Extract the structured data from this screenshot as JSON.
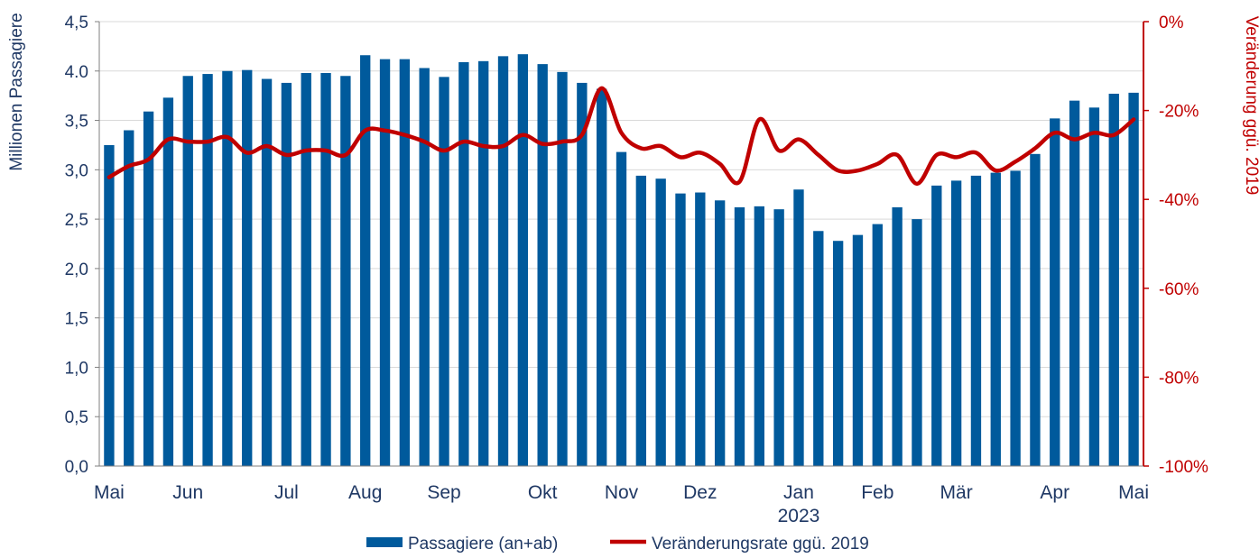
{
  "chart_data": {
    "type": "bar+line",
    "title": "",
    "ylabel_left": "Millionen Passagiere",
    "ylabel_right": "Veränderung ggü. 2019",
    "ylim_left": [
      0,
      4.5
    ],
    "ylim_right": [
      -100,
      0
    ],
    "yticks_left": [
      "0,0",
      "0,5",
      "1,0",
      "1,5",
      "2,0",
      "2,5",
      "3,0",
      "3,5",
      "4.0",
      "4,5"
    ],
    "yticks_right": [
      "-100%",
      "-80%",
      "-60%",
      "-40%",
      "-20%",
      "0%"
    ],
    "x_ticks": [
      {
        "label": "Mai",
        "index": 0
      },
      {
        "label": "Jun",
        "index": 4
      },
      {
        "label": "Jul",
        "index": 9
      },
      {
        "label": "Aug",
        "index": 13
      },
      {
        "label": "Sep",
        "index": 17
      },
      {
        "label": "Okt",
        "index": 22
      },
      {
        "label": "Nov",
        "index": 26
      },
      {
        "label": "Dez",
        "index": 30
      },
      {
        "label": "Jan",
        "index": 35
      },
      {
        "label": "Feb",
        "index": 39
      },
      {
        "label": "Mär",
        "index": 43
      },
      {
        "label": "Apr",
        "index": 48
      },
      {
        "label": "Mai",
        "index": 52
      }
    ],
    "year_label": "2023",
    "year_label_index": 35,
    "series": [
      {
        "name": "Passagiere (an+ab)",
        "type": "bar",
        "axis": "left",
        "color": "#005a9c",
        "values": [
          3.25,
          3.4,
          3.59,
          3.73,
          3.95,
          3.97,
          4.0,
          4.01,
          3.92,
          3.88,
          3.98,
          3.98,
          3.95,
          4.16,
          4.12,
          4.12,
          4.03,
          3.94,
          4.09,
          4.1,
          4.15,
          4.17,
          4.07,
          3.99,
          3.88,
          3.82,
          3.18,
          2.94,
          2.91,
          2.76,
          2.77,
          2.69,
          2.62,
          2.63,
          2.6,
          2.8,
          2.38,
          2.28,
          2.34,
          2.45,
          2.62,
          2.5,
          2.84,
          2.89,
          2.94,
          2.97,
          2.99,
          3.16,
          3.52,
          3.7,
          3.63,
          3.77,
          3.78
        ]
      },
      {
        "name": "Veränderungsrate ggü. 2019",
        "type": "line",
        "axis": "right",
        "color": "#c00000",
        "values": [
          -35,
          -32.5,
          -31,
          -26.5,
          -27,
          -27,
          -26,
          -29.5,
          -28,
          -30,
          -29,
          -29,
          -30,
          -24.5,
          -24.5,
          -25.5,
          -27,
          -29,
          -27,
          -28,
          -28,
          -25.5,
          -27.5,
          -27,
          -25.5,
          -15,
          -25,
          -28.5,
          -28,
          -30.5,
          -29.5,
          -32,
          -36,
          -22,
          -29,
          -26.5,
          -30,
          -33.5,
          -33.5,
          -32,
          -30,
          -36.5,
          -30,
          -30.5,
          -29.5,
          -33.5,
          -31.5,
          -28.5,
          -25,
          -26.5,
          -25,
          -25.5,
          -22
        ]
      }
    ],
    "legend": [
      {
        "label": "Passagiere (an+ab)",
        "kind": "bar"
      },
      {
        "label": "Veränderungsrate ggü. 2019",
        "kind": "line"
      }
    ]
  }
}
